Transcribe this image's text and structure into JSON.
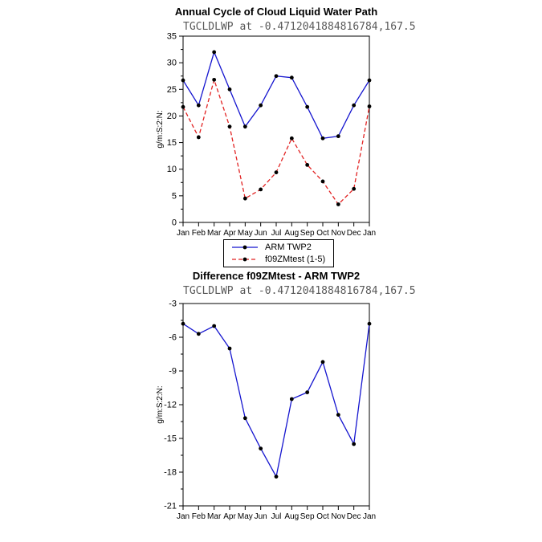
{
  "chart_data": [
    {
      "type": "line",
      "title": "Annual Cycle of Cloud Liquid Water Path",
      "subtitle": "TGCLDLWP at -0.4712041884816784,167.5",
      "ylabel": "g/m:S:2:N:",
      "categories": [
        "Jan",
        "Feb",
        "Mar",
        "Apr",
        "May",
        "Jun",
        "Jul",
        "Aug",
        "Sep",
        "Oct",
        "Nov",
        "Dec",
        "Jan"
      ],
      "ylim": [
        0,
        35
      ],
      "yticks": [
        0,
        5,
        10,
        15,
        20,
        25,
        30,
        35
      ],
      "grid": false,
      "legend_position": "below",
      "marker_color": "#000000",
      "series": [
        {
          "name": "ARM TWP2",
          "color": "#1515cf",
          "dash": "solid",
          "values": [
            26.7,
            22.0,
            32.0,
            25.0,
            18.0,
            22.0,
            27.5,
            27.2,
            21.7,
            15.8,
            16.2,
            22.0,
            26.7
          ]
        },
        {
          "name": "f09ZMtest (1-5)",
          "color": "#e22222",
          "dash": "dashed",
          "values": [
            21.7,
            16.0,
            26.8,
            18.0,
            4.5,
            6.2,
            9.4,
            15.8,
            10.8,
            7.7,
            3.4,
            6.3,
            21.8
          ]
        }
      ]
    },
    {
      "type": "line",
      "title": "Difference f09ZMtest - ARM TWP2",
      "subtitle": "TGCLDLWP at -0.4712041884816784,167.5",
      "ylabel": "g/m:S:2:N:",
      "categories": [
        "Jan",
        "Feb",
        "Mar",
        "Apr",
        "May",
        "Jun",
        "Jul",
        "Aug",
        "Sep",
        "Oct",
        "Nov",
        "Dec",
        "Jan"
      ],
      "ylim": [
        -21,
        -3
      ],
      "yticks": [
        -21,
        -18,
        -15,
        -12,
        -9,
        -6,
        -3
      ],
      "grid": false,
      "legend_position": "none",
      "marker_color": "#000000",
      "series": [
        {
          "name": "difference",
          "color": "#1515cf",
          "dash": "solid",
          "values": [
            -4.8,
            -5.7,
            -5.0,
            -7.0,
            -13.2,
            -15.9,
            -18.4,
            -11.5,
            -10.9,
            -8.2,
            -12.9,
            -15.5,
            -4.8
          ]
        }
      ]
    }
  ]
}
